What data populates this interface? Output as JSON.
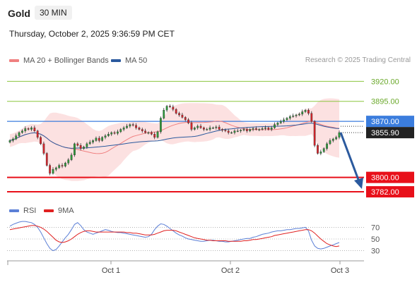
{
  "header": {
    "instrument": "Gold",
    "timeframe": "30 MIN",
    "datetime": "Thursday, October 2, 2025 9:36:59 PM CET"
  },
  "legend": {
    "ma20": {
      "label": "MA 20 + Bollinger Bands",
      "color": "#f08080"
    },
    "ma50": {
      "label": "MA 50",
      "color": "#2b5a9e"
    }
  },
  "credit": "Research © 2025 Trading Central",
  "rsi_legend": {
    "rsi": {
      "label": "RSI",
      "color": "#5b7fd6"
    },
    "ma9": {
      "label": "9MA",
      "color": "#e02020"
    }
  },
  "chart_data": [
    {
      "type": "candlestick",
      "x_ticks": [
        "Oct 1",
        "Oct 2",
        "Oct 3"
      ],
      "ylim": [
        3775,
        3930
      ],
      "levels": [
        {
          "value": 3920,
          "label": "3920.00",
          "kind": "resistance",
          "color": "#8cc63f"
        },
        {
          "value": 3895,
          "label": "3895.00",
          "kind": "resistance",
          "color": "#8cc63f"
        },
        {
          "value": 3870,
          "label": "3870.00",
          "kind": "pivot",
          "color": "#3b7ddd"
        },
        {
          "value": 3800,
          "label": "3800.00",
          "kind": "support",
          "color": "#e8101a"
        },
        {
          "value": 3782,
          "label": "3782.00",
          "kind": "support",
          "color": "#e8101a"
        }
      ],
      "last_price": {
        "value": 3855.9,
        "label": "3855.90"
      },
      "projection": {
        "from": 3856,
        "to": 3782
      },
      "closes": [
        3846,
        3848,
        3852,
        3856,
        3858,
        3861,
        3860,
        3862,
        3858,
        3850,
        3842,
        3830,
        3815,
        3805,
        3810,
        3812,
        3815,
        3814,
        3818,
        3822,
        3828,
        3842,
        3840,
        3836,
        3838,
        3842,
        3844,
        3846,
        3849,
        3846,
        3850,
        3852,
        3854,
        3856,
        3855,
        3857,
        3860,
        3862,
        3864,
        3866,
        3865,
        3862,
        3860,
        3858,
        3856,
        3856,
        3854,
        3850,
        3857,
        3874,
        3884,
        3889,
        3888,
        3885,
        3880,
        3878,
        3875,
        3872,
        3868,
        3860,
        3862,
        3864,
        3862,
        3860,
        3860,
        3862,
        3862,
        3863,
        3860,
        3859,
        3858,
        3856,
        3856,
        3858,
        3858,
        3859,
        3860,
        3858,
        3860,
        3861,
        3860,
        3860,
        3861,
        3862,
        3860,
        3862,
        3866,
        3868,
        3870,
        3872,
        3874,
        3876,
        3877,
        3878,
        3879,
        3882,
        3884,
        3880,
        3870,
        3840,
        3830,
        3832,
        3836,
        3842,
        3846,
        3848,
        3850,
        3856
      ]
    },
    {
      "type": "line",
      "title": "RSI",
      "y_ticks": [
        70,
        50,
        30
      ],
      "ylim": [
        15,
        85
      ],
      "series": [
        {
          "name": "RSI",
          "values": [
            72,
            75,
            77,
            79,
            80,
            80,
            79,
            78,
            75,
            70,
            62,
            52,
            42,
            34,
            30,
            32,
            38,
            45,
            52,
            58,
            66,
            75,
            78,
            73,
            66,
            62,
            60,
            58,
            60,
            62,
            64,
            66,
            65,
            63,
            62,
            61,
            61,
            60,
            59,
            58,
            57,
            56,
            55,
            54,
            53,
            54,
            58,
            66,
            72,
            76,
            75,
            72,
            68,
            64,
            60,
            57,
            55,
            52,
            50,
            49,
            48,
            47,
            46,
            46,
            47,
            48,
            48,
            47,
            46,
            46,
            45,
            45,
            46,
            47,
            48,
            49,
            50,
            51,
            51,
            53,
            54,
            56,
            58,
            59,
            60,
            62,
            63,
            64,
            64,
            65,
            66,
            66,
            67,
            68,
            68,
            69,
            70,
            64,
            48,
            38,
            34,
            33,
            34,
            36,
            38,
            40,
            42,
            44
          ]
        },
        {
          "name": "9MA",
          "values": [
            66,
            67,
            68,
            69,
            70,
            71,
            72,
            73,
            73,
            72,
            70,
            67,
            63,
            58,
            53,
            48,
            45,
            44,
            45,
            47,
            50,
            54,
            58,
            61,
            63,
            64,
            64,
            63,
            62,
            62,
            62,
            62,
            62,
            62,
            62,
            62,
            62,
            62,
            61,
            61,
            60,
            60,
            59,
            58,
            57,
            57,
            57,
            58,
            60,
            62,
            64,
            65,
            65,
            65,
            64,
            62,
            60,
            58,
            56,
            54,
            52,
            51,
            50,
            49,
            48,
            48,
            47,
            47,
            47,
            47,
            47,
            46,
            46,
            46,
            46,
            46,
            47,
            47,
            48,
            49,
            49,
            50,
            51,
            52,
            53,
            54,
            56,
            57,
            58,
            59,
            60,
            61,
            62,
            63,
            64,
            65,
            66,
            66,
            64,
            60,
            55,
            50,
            46,
            42,
            40,
            38,
            37,
            38
          ]
        }
      ]
    }
  ]
}
